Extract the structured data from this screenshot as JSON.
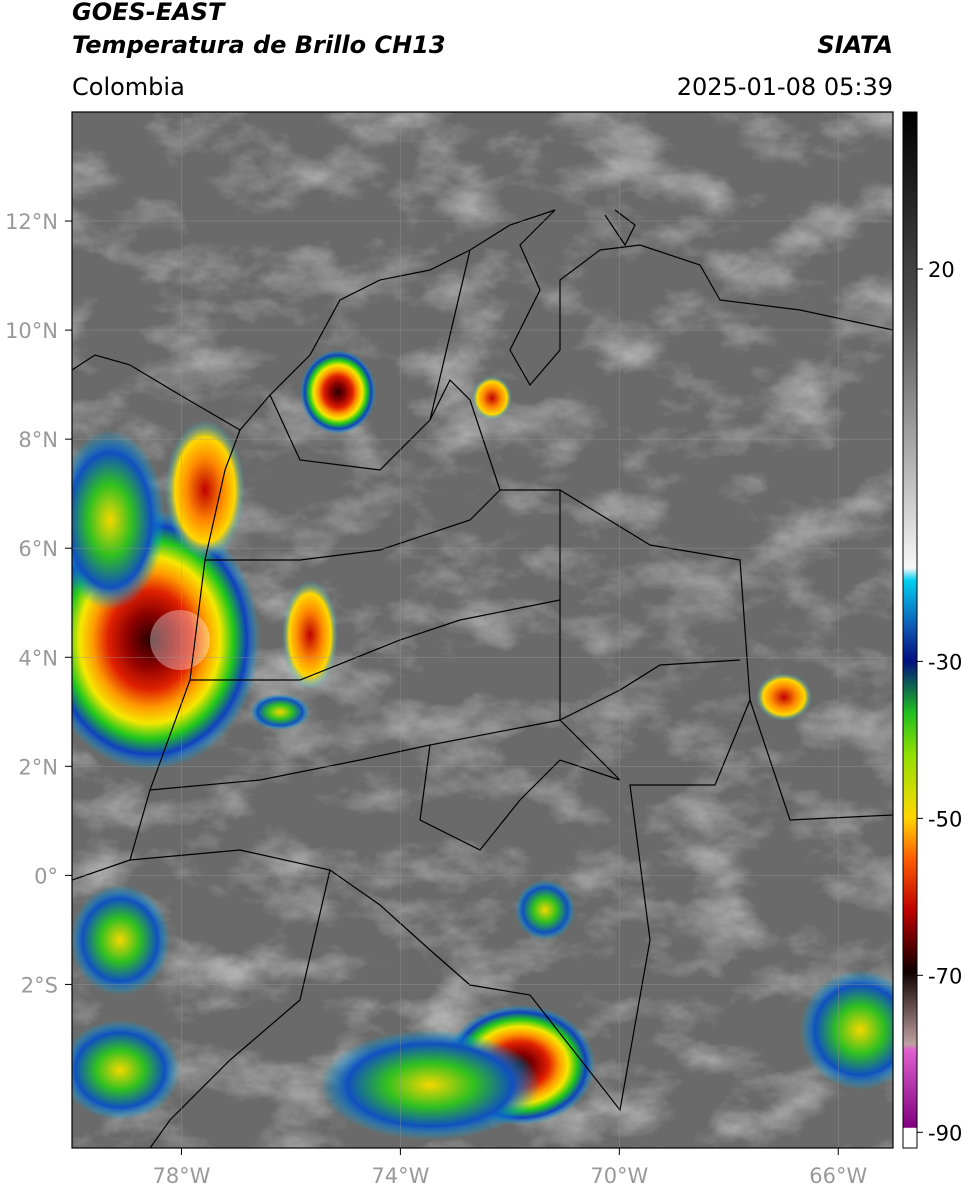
{
  "header": {
    "satellite": "GOES-EAST",
    "product": "Temperatura de Brillo CH13",
    "source": "SIATA",
    "region": "Colombia",
    "datetime": "2025-01-08 05:39"
  },
  "map": {
    "lon_range": [
      -80,
      -65
    ],
    "lat_range": [
      -5,
      14
    ],
    "grid": true,
    "lon_ticks": [
      {
        "value": -78,
        "label": "78°W"
      },
      {
        "value": -74,
        "label": "74°W"
      },
      {
        "value": -70,
        "label": "70°W"
      },
      {
        "value": -66,
        "label": "66°W"
      }
    ],
    "lat_ticks": [
      {
        "value": 12,
        "label": "12°N"
      },
      {
        "value": 10,
        "label": "10°N"
      },
      {
        "value": 8,
        "label": "8°N"
      },
      {
        "value": 6,
        "label": "6°N"
      },
      {
        "value": 4,
        "label": "4°N"
      },
      {
        "value": 2,
        "label": "2°N"
      },
      {
        "value": 0,
        "label": "0°"
      },
      {
        "value": -2,
        "label": "2°S"
      }
    ]
  },
  "colorbar": {
    "range": [
      -92,
      40
    ],
    "ticks": [
      20,
      -30,
      -50,
      -70,
      -90
    ]
  }
}
